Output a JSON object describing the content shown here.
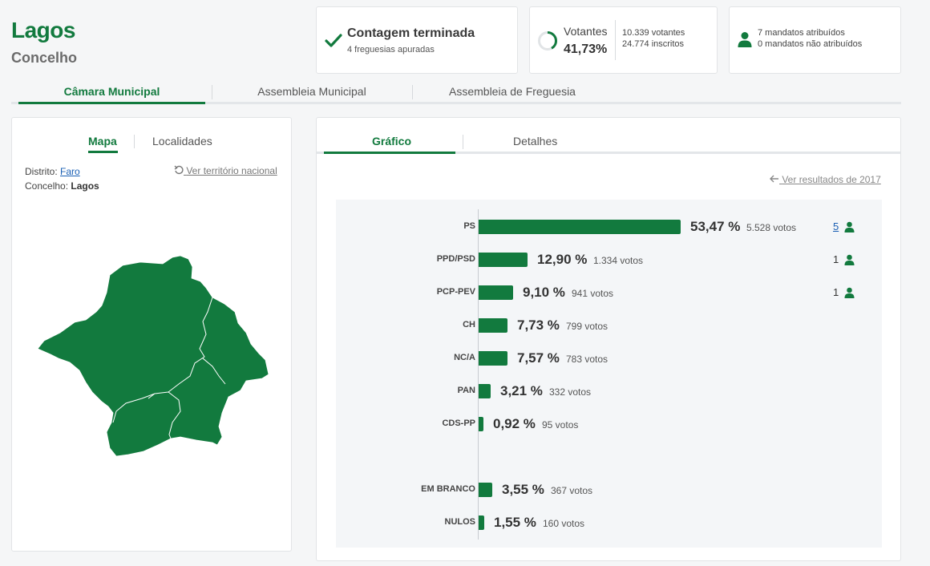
{
  "header": {
    "place": "Lagos",
    "type": "Concelho"
  },
  "count_card": {
    "title": "Contagem terminada",
    "subtitle": "4 freguesias apuradas"
  },
  "voters_card": {
    "label": "Votantes",
    "pct": "41,73%",
    "voters": "10.339 votantes",
    "registered": "24.774 inscritos"
  },
  "mandates_card": {
    "assigned": "7 mandatos atribuídos",
    "unassigned": "0 mandatos não atribuídos"
  },
  "main_tabs": [
    {
      "label": "Câmara Municipal",
      "active": true
    },
    {
      "label": "Assembleia Municipal",
      "active": false
    },
    {
      "label": "Assembleia de Freguesia",
      "active": false
    }
  ],
  "map_panel": {
    "tabs": [
      {
        "label": "Mapa",
        "active": true
      },
      {
        "label": "Localidades",
        "active": false
      }
    ],
    "district_label": "Distrito:",
    "district_value": "Faro",
    "municipality_label": "Concelho:",
    "municipality_value": "Lagos",
    "national_link": "Ver território nacional"
  },
  "chart_panel": {
    "tabs": [
      {
        "label": "Gráfico",
        "active": true
      },
      {
        "label": "Detalhes",
        "active": false
      }
    ],
    "previous_link": "Ver resultados de 2017"
  },
  "chart_data": {
    "type": "bar",
    "orientation": "horizontal",
    "categories": [
      "PS",
      "PPD/PSD",
      "PCP-PEV",
      "CH",
      "NC/A",
      "PAN",
      "CDS-PP",
      "EM BRANCO",
      "NULOS"
    ],
    "values": [
      53.47,
      12.9,
      9.1,
      7.73,
      7.57,
      3.21,
      0.92,
      3.55,
      1.55
    ],
    "pct_labels": [
      "53,47 %",
      "12,90 %",
      "9,10 %",
      "7,73 %",
      "7,57 %",
      "3,21 %",
      "0,92 %",
      "3,55 %",
      "1,55 %"
    ],
    "vote_labels": [
      "5.528 votos",
      "1.334 votos",
      "941 votos",
      "799 votos",
      "783 votos",
      "332 votos",
      "95 votos",
      "367 votos",
      "160 votos"
    ],
    "seats": [
      "5",
      "1",
      "1",
      "",
      "",
      "",
      "",
      "",
      ""
    ],
    "xlim": [
      0,
      53.47
    ],
    "bar_color": "#127a3e"
  },
  "colors": {
    "brand_green": "#127a3e",
    "link_blue": "#1a5fb4"
  },
  "icons": {
    "count_status": "check-icon",
    "voters": "progress-ring-icon",
    "mandates": "person-icon",
    "seat": "person-icon",
    "back_arrow": "arrow-left-icon",
    "reset": "undo-icon"
  }
}
